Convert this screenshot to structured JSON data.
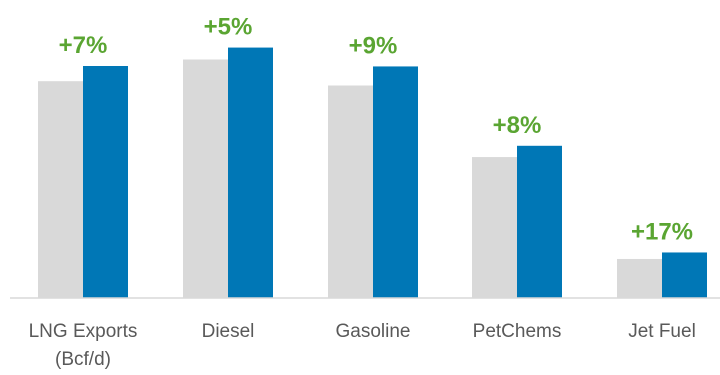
{
  "chart_data": {
    "type": "bar",
    "categories": [
      {
        "lines": [
          "LNG Exports",
          "(Bcf/d)"
        ]
      },
      {
        "lines": [
          "Diesel"
        ]
      },
      {
        "lines": [
          "Gasoline"
        ]
      },
      {
        "lines": [
          "PetChems"
        ]
      },
      {
        "lines": [
          "Jet Fuel"
        ]
      }
    ],
    "series": [
      {
        "values": [
          100,
          110,
          98,
          65,
          18
        ]
      },
      {
        "values": [
          107,
          115.5,
          106.8,
          70.2,
          21
        ]
      }
    ],
    "data_labels": [
      "+7%",
      "+5%",
      "+9%",
      "+8%",
      "+17%"
    ],
    "ylim": [
      0,
      120
    ],
    "colors": {
      "series_1": "#d9d9d9",
      "series_2": "#0077b6",
      "labels": "#5aa532",
      "axis": "#d9d9d9",
      "text": "#595959"
    },
    "grid": false,
    "legend": "none"
  }
}
